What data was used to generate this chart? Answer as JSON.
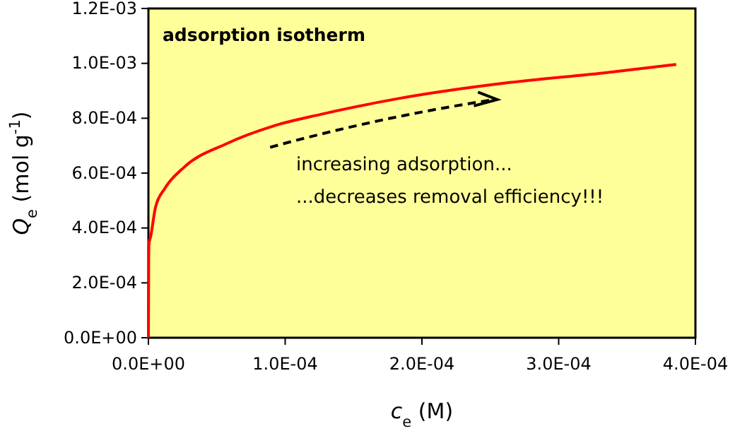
{
  "chart_data": {
    "type": "line",
    "title": "adsorption isotherm",
    "xlabel": "c$_{e}$ (M)",
    "ylabel": "Q$_{e}$ (mol g$^{-1}$)",
    "x": [
      0,
      2e-07,
      3e-07,
      1.7e-06,
      5.2e-06,
      1.2e-05,
      2.6e-05,
      5.7e-05,
      9.1e-05,
      0.000126,
      0.000181,
      0.000264,
      0.000333,
      0.000386
    ],
    "series": [
      {
        "color": "#ff0000",
        "values": [
          0,
          0.00027,
          0.000338,
          0.00037,
          0.000476,
          0.000544,
          0.000621,
          0.000707,
          0.000771,
          0.000814,
          0.00087,
          0.00093,
          0.000965,
          0.000996
        ]
      }
    ],
    "xlim": [
      0,
      0.0004
    ],
    "ylim": [
      0,
      0.0012
    ],
    "xticks": [
      {
        "value": 0,
        "label": "0.0E+00"
      },
      {
        "value": 0.0001,
        "label": "1.0E-04"
      },
      {
        "value": 0.0002,
        "label": "2.0E-04"
      },
      {
        "value": 0.0003,
        "label": "3.0E-04"
      },
      {
        "value": 0.0004,
        "label": "4.0E-04"
      }
    ],
    "yticks": [
      {
        "value": 0,
        "label": "0.0E+00"
      },
      {
        "value": 0.0002,
        "label": "2.0E-04"
      },
      {
        "value": 0.0004,
        "label": "4.0E-04"
      },
      {
        "value": 0.0006,
        "label": "6.0E-04"
      },
      {
        "value": 0.0008,
        "label": "8.0E-04"
      },
      {
        "value": 0.001,
        "label": "1.0E-03"
      },
      {
        "value": 0.0012,
        "label": "1.2E-03"
      }
    ],
    "grid": false,
    "marker": "none",
    "line_style": "solid",
    "annotations": [
      "increasing adsorption...",
      "...decreases removal efficiency!!!"
    ]
  }
}
